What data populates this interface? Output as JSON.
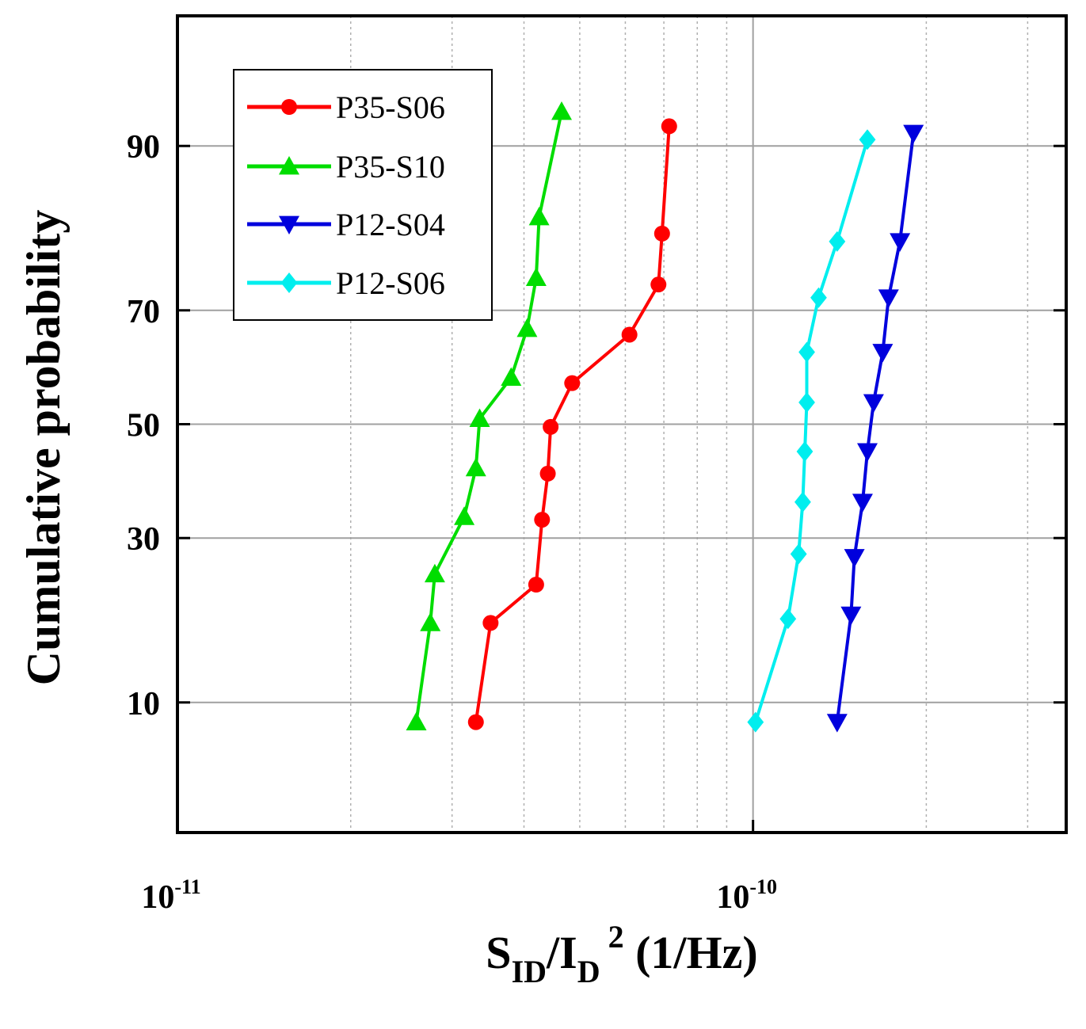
{
  "chart_data": {
    "type": "line",
    "x_scale": "log",
    "y_scale": "probit",
    "xlim": [
      1e-11,
      3.5e-10
    ],
    "ylim": [
      3,
      97
    ],
    "xlabel": {
      "main": "S",
      "sub1": "ID",
      "mid": "/I",
      "sub2": "D",
      "sup": "2",
      "unit": " (1/Hz)"
    },
    "ylabel": "Cumulative probability",
    "x_ticks": [
      {
        "value": 1e-11,
        "base": "10",
        "exp": "-11"
      },
      {
        "value": 1e-10,
        "base": "10",
        "exp": "-10"
      }
    ],
    "x_minor_grid": [
      2e-11,
      3e-11,
      4e-11,
      5e-11,
      6e-11,
      7e-11,
      8e-11,
      9e-11,
      2e-10,
      3e-10
    ],
    "y_ticks": [
      {
        "value": 10,
        "label": "10"
      },
      {
        "value": 30,
        "label": "30"
      },
      {
        "value": 50,
        "label": "50"
      },
      {
        "value": 70,
        "label": "70"
      },
      {
        "value": 90,
        "label": "90"
      }
    ],
    "legend_position": "top-left",
    "series": [
      {
        "name": "P35-S06",
        "color": "#ff0000",
        "marker": "circle",
        "points": [
          [
            3.3e-11,
            8.5
          ],
          [
            3.5e-11,
            18
          ],
          [
            4.2e-11,
            23
          ],
          [
            4.3e-11,
            33
          ],
          [
            4.4e-11,
            41
          ],
          [
            4.45e-11,
            49.5
          ],
          [
            4.85e-11,
            57.5
          ],
          [
            6.1e-11,
            66
          ],
          [
            6.85e-11,
            74
          ],
          [
            6.95e-11,
            81
          ],
          [
            7.15e-11,
            91.5
          ]
        ]
      },
      {
        "name": "P35-S10",
        "color": "#00dd00",
        "marker": "triangle-up",
        "points": [
          [
            2.6e-11,
            8.5
          ],
          [
            2.75e-11,
            18
          ],
          [
            2.8e-11,
            24.5
          ],
          [
            3.15e-11,
            33.5
          ],
          [
            3.3e-11,
            42
          ],
          [
            3.35e-11,
            51
          ],
          [
            3.8e-11,
            58.5
          ],
          [
            4.05e-11,
            67
          ],
          [
            4.2e-11,
            75
          ],
          [
            4.25e-11,
            83
          ],
          [
            4.65e-11,
            92.5
          ]
        ]
      },
      {
        "name": "P12-S04",
        "color": "#0000dd",
        "marker": "triangle-down",
        "points": [
          [
            1.4e-10,
            8.5
          ],
          [
            1.48e-10,
            19
          ],
          [
            1.5e-10,
            27
          ],
          [
            1.55e-10,
            36
          ],
          [
            1.58e-10,
            45
          ],
          [
            1.62e-10,
            54
          ],
          [
            1.68e-10,
            63
          ],
          [
            1.72e-10,
            72
          ],
          [
            1.8e-10,
            80
          ],
          [
            1.9e-10,
            91
          ]
        ]
      },
      {
        "name": "P12-S06",
        "color": "#00eeee",
        "marker": "diamond",
        "points": [
          [
            1.01e-10,
            8.5
          ],
          [
            1.15e-10,
            18.5
          ],
          [
            1.2e-10,
            27.5
          ],
          [
            1.22e-10,
            36
          ],
          [
            1.23e-10,
            45
          ],
          [
            1.24e-10,
            54
          ],
          [
            1.24e-10,
            63
          ],
          [
            1.3e-10,
            72
          ],
          [
            1.4e-10,
            80
          ],
          [
            1.58e-10,
            90.5
          ]
        ]
      }
    ]
  }
}
